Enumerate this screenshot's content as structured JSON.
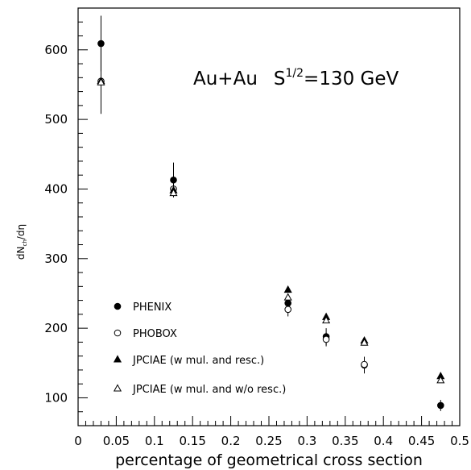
{
  "chart_data": {
    "type": "scatter",
    "title": "",
    "annotation": "Au+Au   S^{1/2}=130 GeV",
    "annotation_parts": {
      "prefix": "Au+Au",
      "base": "S",
      "exponent": "1/2",
      "suffix": "=130 GeV"
    },
    "xlabel": "percentage of geometrical cross section",
    "ylabel": "dN_ch/dη",
    "ylabel_parts": {
      "base": "dN",
      "subscript": "ch",
      "suffix": "/dη"
    },
    "xlim": [
      0,
      0.5
    ],
    "ylim": [
      60,
      660
    ],
    "x_ticks": [
      0,
      0.05,
      0.1,
      0.15,
      0.2,
      0.25,
      0.3,
      0.35,
      0.4,
      0.45,
      0.5
    ],
    "x_tick_labels": [
      "0",
      "0.05",
      "0.1",
      "0.15",
      "0.2",
      "0.25",
      "0.3",
      "0.35",
      "0.4",
      "0.45",
      "0.5"
    ],
    "y_ticks": [
      100,
      200,
      300,
      400,
      500,
      600
    ],
    "y_tick_labels": [
      "100",
      "200",
      "300",
      "400",
      "500",
      "600"
    ],
    "grid": false,
    "legend_position": "bottom-left",
    "series": [
      {
        "name": "PHENIX",
        "marker": "filled-circle",
        "x": [
          0.03,
          0.125,
          0.275,
          0.325,
          0.375,
          0.475
        ],
        "y": [
          609,
          413,
          236,
          188,
          147,
          89
        ],
        "err": [
          40,
          25,
          10,
          12,
          12,
          8
        ]
      },
      {
        "name": "PHOBOX",
        "marker": "open-circle",
        "x": [
          0.03,
          0.125,
          0.275,
          0.325,
          0.375
        ],
        "y": [
          555,
          400,
          227,
          184,
          148
        ],
        "err": [
          47,
          10,
          10,
          10,
          10
        ]
      },
      {
        "name": "JPCIAE (w mul. and resc.)",
        "marker": "filled-triangle",
        "x": [
          0.03,
          0.125,
          0.275,
          0.325,
          0.375,
          0.475
        ],
        "y": [
          555,
          398,
          255,
          216,
          182,
          131
        ],
        "err": [
          0,
          0,
          0,
          0,
          0,
          0
        ]
      },
      {
        "name": "JPCIAE (w mul. and w/o resc.)",
        "marker": "open-triangle",
        "x": [
          0.03,
          0.125,
          0.275,
          0.325,
          0.375,
          0.475
        ],
        "y": [
          553,
          394,
          244,
          211,
          179,
          125
        ],
        "err": [
          0,
          0,
          0,
          0,
          0,
          0
        ]
      }
    ]
  }
}
